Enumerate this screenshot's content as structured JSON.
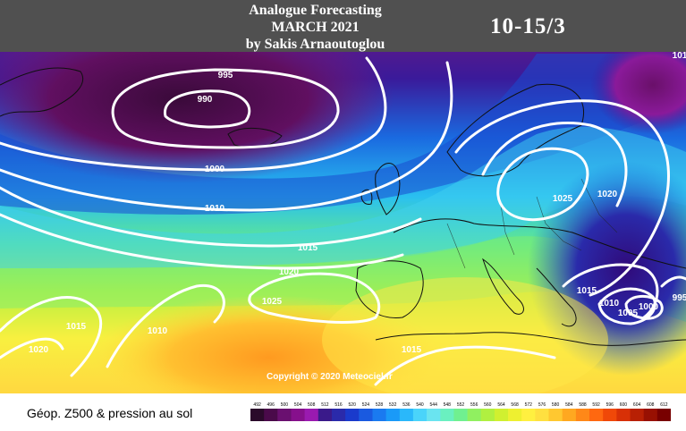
{
  "header": {
    "line1": "Analogue Forecasting",
    "line2": "MARCH 2021",
    "line3": "by Sakis Arnaoutoglou",
    "dates": "10-15/3"
  },
  "isobars": [
    {
      "label": "995"
    },
    {
      "label": "990"
    },
    {
      "label": "1000"
    },
    {
      "label": "1010"
    },
    {
      "label": "1015"
    },
    {
      "label": "1020"
    },
    {
      "label": "1025"
    },
    {
      "label": "1015"
    },
    {
      "label": "1010"
    },
    {
      "label": "1020"
    },
    {
      "label": "1025"
    },
    {
      "label": "1020"
    },
    {
      "label": "1015"
    },
    {
      "label": "1010"
    },
    {
      "label": "1005"
    },
    {
      "label": "1000"
    },
    {
      "label": "1015"
    },
    {
      "label": "995"
    },
    {
      "label": "101"
    }
  ],
  "copyright": "Copyright © 2020 Meteociel.fr",
  "footer_label": "Géop. Z500 & pression au sol",
  "scale": {
    "ticks": [
      "492",
      "496",
      "500",
      "504",
      "508",
      "512",
      "516",
      "520",
      "524",
      "528",
      "532",
      "536",
      "540",
      "544",
      "548",
      "552",
      "556",
      "560",
      "564",
      "568",
      "572",
      "576",
      "580",
      "584",
      "588",
      "592",
      "596",
      "600",
      "604",
      "608",
      "612"
    ],
    "colors": [
      "#2a0a2a",
      "#4a0a4a",
      "#6a1070",
      "#86108c",
      "#9a1ab0",
      "#3a1a8a",
      "#2a2aaa",
      "#1a3acc",
      "#1a5ae0",
      "#1a7af0",
      "#1a9af8",
      "#2ab8fa",
      "#4ad4fa",
      "#6ae4f0",
      "#6af0c0",
      "#70f090",
      "#90f060",
      "#b0f040",
      "#d0f030",
      "#eef030",
      "#fff040",
      "#ffe040",
      "#ffc830",
      "#ffa820",
      "#ff8818",
      "#ff6810",
      "#f04808",
      "#d83006",
      "#b82004",
      "#981002",
      "#780000"
    ]
  },
  "colors": {
    "header_bg": "#505050",
    "isobar": "#ffffff"
  }
}
